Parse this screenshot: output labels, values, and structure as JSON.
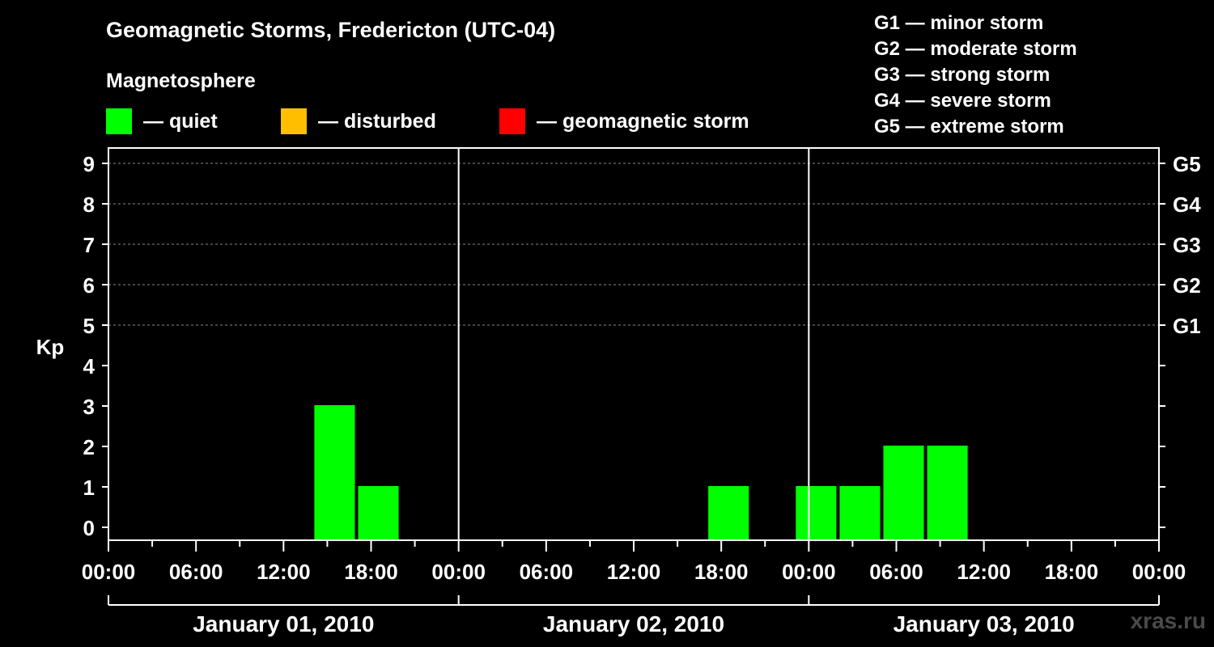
{
  "header": {
    "title": "Geomagnetic Storms, Fredericton (UTC-04)",
    "legend_title": "Magnetosphere"
  },
  "legend": [
    {
      "label": "— quiet",
      "color": "#00ff00"
    },
    {
      "label": "— disturbed",
      "color": "#ffbf00"
    },
    {
      "label": "— geomagnetic storm",
      "color": "#ff0000"
    }
  ],
  "storm_levels": [
    "G1 — minor storm",
    "G2 — moderate storm",
    "G3 — strong storm",
    "G4 — severe storm",
    "G5 — extreme storm"
  ],
  "watermark": "xras.ru",
  "chart_data": {
    "type": "bar",
    "ylabel": "Kp",
    "ylim": [
      0,
      9
    ],
    "y_ticks": [
      "0",
      "1",
      "2",
      "3",
      "4",
      "5",
      "6",
      "7",
      "8",
      "9"
    ],
    "right_axis_labels": [
      {
        "kp": 5,
        "label": "G1"
      },
      {
        "kp": 6,
        "label": "G2"
      },
      {
        "kp": 7,
        "label": "G3"
      },
      {
        "kp": 8,
        "label": "G4"
      },
      {
        "kp": 9,
        "label": "G5"
      }
    ],
    "x_range_hours": [
      0,
      72
    ],
    "x_tick_labels": [
      "00:00",
      "06:00",
      "12:00",
      "18:00",
      "00:00",
      "06:00",
      "12:00",
      "18:00",
      "00:00",
      "06:00",
      "12:00",
      "18:00",
      "00:00"
    ],
    "days": [
      "January 01, 2010",
      "January 02, 2010",
      "January 03, 2010"
    ],
    "grid_dashed_at": [
      5,
      6,
      7,
      8,
      9
    ],
    "bar_width_hours": 3,
    "values": [
      {
        "start_hour": 14,
        "kp": 3,
        "level": "quiet"
      },
      {
        "start_hour": 17,
        "kp": 1,
        "level": "quiet"
      },
      {
        "start_hour": 41,
        "kp": 1,
        "level": "quiet"
      },
      {
        "start_hour": 47,
        "kp": 1,
        "level": "quiet"
      },
      {
        "start_hour": 50,
        "kp": 1,
        "level": "quiet"
      },
      {
        "start_hour": 53,
        "kp": 2,
        "level": "quiet"
      },
      {
        "start_hour": 56,
        "kp": 2,
        "level": "quiet"
      }
    ]
  }
}
